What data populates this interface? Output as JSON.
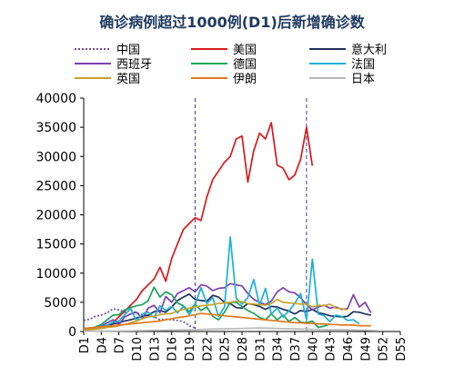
{
  "chart_data": {
    "type": "line",
    "title": "确诊病例超过1000例(D1)后新增确诊数",
    "xlabel": "",
    "ylabel": "",
    "ylim": [
      0,
      40000
    ],
    "yticks": [
      0,
      5000,
      10000,
      15000,
      20000,
      25000,
      30000,
      35000,
      40000
    ],
    "xlim": [
      1,
      55
    ],
    "xticks": [
      "D1",
      "D4",
      "D7",
      "D10",
      "D13",
      "D16",
      "D19",
      "D22",
      "D25",
      "D28",
      "D31",
      "D34",
      "D37",
      "D40",
      "D43",
      "D46",
      "D49",
      "D52",
      "D55"
    ],
    "grid": false,
    "legend_position": "top",
    "vlines": [
      20,
      39
    ],
    "series": [
      {
        "name": "中国",
        "color": "#6b4f8f",
        "dashed": true,
        "x": [
          1,
          2,
          3,
          4,
          5,
          6,
          7,
          8,
          9,
          10,
          11,
          12,
          13,
          14,
          15,
          16,
          17,
          18,
          19,
          20
        ],
        "y": [
          1900,
          2100,
          2600,
          2800,
          3200,
          3900,
          3700,
          3300,
          3700,
          3200,
          2900,
          2700,
          2500,
          2000,
          2100,
          2000,
          1900,
          1700,
          1000,
          600
        ]
      },
      {
        "name": "美国",
        "color": "#d7191c",
        "dashed": false,
        "x": [
          1,
          2,
          3,
          4,
          5,
          6,
          7,
          8,
          9,
          10,
          11,
          12,
          13,
          14,
          15,
          16,
          17,
          18,
          19,
          20,
          21,
          22,
          23,
          24,
          25,
          26,
          27,
          28,
          29,
          30,
          31,
          32,
          33,
          34,
          35,
          36,
          37,
          38,
          39,
          40
        ],
        "y": [
          400,
          500,
          600,
          800,
          1000,
          1500,
          2500,
          3500,
          4500,
          5500,
          7000,
          8000,
          9000,
          11000,
          8600,
          12500,
          15000,
          17500,
          18500,
          19500,
          19000,
          23000,
          26000,
          27500,
          29000,
          30000,
          33000,
          33500,
          25600,
          31000,
          34000,
          33000,
          35800,
          28500,
          28000,
          26000,
          26800,
          29500,
          35000,
          28400
        ]
      },
      {
        "name": "意大利",
        "color": "#1f2f5c",
        "dashed": false,
        "x": [
          1,
          2,
          3,
          4,
          5,
          6,
          7,
          8,
          9,
          10,
          11,
          12,
          13,
          14,
          15,
          16,
          17,
          18,
          19,
          20,
          21,
          22,
          23,
          24,
          25,
          26,
          27,
          28,
          29,
          30,
          31,
          32,
          33,
          34,
          35,
          36,
          37,
          38,
          39,
          40,
          41,
          42,
          43,
          44,
          45,
          46,
          47,
          48,
          49,
          50
        ],
        "y": [
          500,
          600,
          700,
          800,
          1000,
          1300,
          1500,
          1800,
          2000,
          2300,
          2600,
          2800,
          3400,
          3600,
          3300,
          4200,
          5300,
          5900,
          6400,
          5500,
          5300,
          5200,
          6200,
          5900,
          5000,
          4800,
          4100,
          4000,
          4800,
          4600,
          4300,
          3800,
          4300,
          4200,
          3800,
          3500,
          3000,
          3600,
          3400,
          3800,
          3200,
          3000,
          2700,
          2600,
          2500,
          2600,
          3400,
          3300,
          3000,
          2800
        ]
      },
      {
        "name": "西班牙",
        "color": "#7a3fb0",
        "dashed": false,
        "x": [
          1,
          2,
          3,
          4,
          5,
          6,
          7,
          8,
          9,
          10,
          11,
          12,
          13,
          14,
          15,
          16,
          17,
          18,
          19,
          20,
          21,
          22,
          23,
          24,
          25,
          26,
          27,
          28,
          29,
          30,
          31,
          32,
          33,
          34,
          35,
          36,
          37,
          38,
          39,
          40,
          41,
          42,
          43,
          44,
          45,
          46,
          47,
          48,
          49,
          50
        ],
        "y": [
          300,
          500,
          700,
          900,
          1500,
          2000,
          1200,
          2500,
          3000,
          3300,
          2200,
          4000,
          4500,
          3200,
          6000,
          5000,
          6500,
          7000,
          7500,
          6800,
          8000,
          7800,
          7000,
          7400,
          7500,
          8200,
          8000,
          7800,
          6500,
          5500,
          5000,
          4600,
          5200,
          6800,
          7500,
          6800,
          6600,
          5800,
          4600,
          3700,
          4200,
          4500,
          4000,
          4200,
          3800,
          3900,
          6300,
          4200,
          5000,
          3200
        ]
      },
      {
        "name": "德国",
        "color": "#1aa35a",
        "dashed": false,
        "x": [
          1,
          2,
          3,
          4,
          5,
          6,
          7,
          8,
          9,
          10,
          11,
          12,
          13,
          14,
          15,
          16,
          17,
          18,
          19,
          20,
          21,
          22,
          23,
          24,
          25,
          26,
          27,
          28,
          29,
          30,
          31,
          32,
          33,
          34,
          35,
          36,
          37,
          38,
          39,
          40,
          41,
          42,
          43
        ],
        "y": [
          100,
          300,
          800,
          1200,
          2000,
          2800,
          2900,
          3700,
          4100,
          4400,
          4600,
          5300,
          7600,
          5900,
          6800,
          6300,
          4900,
          4400,
          3400,
          4700,
          3600,
          4200,
          2600,
          2000,
          3300,
          5000,
          5000,
          4300,
          3600,
          3100,
          2400,
          2000,
          3000,
          2000,
          2800,
          1700,
          2400,
          1600,
          1500,
          1800,
          700,
          900,
          1300
        ]
      },
      {
        "name": "法国",
        "color": "#1ab0d8",
        "dashed": false,
        "x": [
          1,
          2,
          3,
          4,
          5,
          6,
          7,
          8,
          9,
          10,
          11,
          12,
          13,
          14,
          15,
          16,
          17,
          18,
          19,
          20,
          21,
          22,
          23,
          24,
          25,
          26,
          27,
          28,
          29,
          30,
          31,
          32,
          33,
          34,
          35,
          36,
          37,
          38,
          39,
          40,
          41,
          42,
          43,
          44,
          45,
          46,
          47,
          48
        ],
        "y": [
          200,
          300,
          500,
          800,
          1100,
          1600,
          1800,
          2900,
          3900,
          1800,
          3000,
          3300,
          2400,
          4400,
          3600,
          4300,
          3200,
          4300,
          2900,
          4600,
          7500,
          4800,
          5800,
          2600,
          4200,
          16200,
          5700,
          4700,
          5800,
          8900,
          4500,
          7400,
          3000,
          4000,
          2500,
          3500,
          4800,
          6500,
          2000,
          12400,
          3000,
          2700,
          1700,
          2800,
          2600,
          1900,
          2000,
          1300
        ]
      },
      {
        "name": "英国",
        "color": "#c9a227",
        "dashed": false,
        "x": [
          1,
          2,
          3,
          4,
          5,
          6,
          7,
          8,
          9,
          10,
          11,
          12,
          13,
          14,
          15,
          16,
          17,
          18,
          19,
          20,
          21,
          22,
          23,
          24,
          25,
          26,
          27,
          28,
          29,
          30,
          31,
          32,
          33,
          34,
          35,
          36,
          37,
          38,
          39,
          40,
          41,
          42,
          43,
          44,
          45,
          46
        ],
        "y": [
          200,
          300,
          400,
          500,
          700,
          800,
          1000,
          1200,
          1500,
          1800,
          2200,
          2500,
          2600,
          2900,
          3000,
          3100,
          3500,
          3800,
          4000,
          4200,
          4400,
          4500,
          4600,
          4800,
          4900,
          5000,
          5200,
          5100,
          4800,
          4700,
          4600,
          4500,
          4800,
          5500,
          5000,
          4900,
          4800,
          4700,
          4700,
          4200,
          4500,
          4400,
          4700,
          4000,
          3900,
          3700
        ]
      },
      {
        "name": "伊朗",
        "color": "#e07a1f",
        "dashed": false,
        "x": [
          1,
          2,
          3,
          4,
          5,
          6,
          7,
          8,
          9,
          10,
          11,
          12,
          13,
          14,
          15,
          16,
          17,
          18,
          19,
          20,
          21,
          22,
          23,
          24,
          25,
          26,
          27,
          28,
          29,
          30,
          31,
          32,
          33,
          34,
          35,
          36,
          37,
          38,
          39,
          40,
          41,
          42,
          43,
          44,
          45,
          46,
          47,
          48,
          49,
          50
        ],
        "y": [
          500,
          600,
          700,
          800,
          900,
          1000,
          1100,
          1200,
          1300,
          1400,
          1500,
          1600,
          1700,
          1800,
          2000,
          2200,
          2400,
          2500,
          2700,
          2900,
          3100,
          3000,
          2900,
          2800,
          2700,
          2600,
          2500,
          2400,
          2300,
          2200,
          2100,
          2000,
          1900,
          1800,
          1700,
          1600,
          1500,
          1500,
          1400,
          1400,
          1300,
          1300,
          1200,
          1200,
          1100,
          1100,
          1100,
          1000,
          1000,
          1000
        ]
      },
      {
        "name": "日本",
        "color": "#b9b9b9",
        "dashed": false,
        "x": [
          1,
          3,
          5,
          7,
          9,
          11,
          13,
          15,
          17,
          19,
          21,
          23,
          25,
          27,
          29,
          31,
          33,
          35,
          37,
          39,
          41,
          43,
          45,
          47,
          49,
          51
        ],
        "y": [
          50,
          60,
          80,
          100,
          120,
          150,
          180,
          200,
          250,
          300,
          350,
          400,
          450,
          500,
          550,
          600,
          550,
          500,
          450,
          400,
          350,
          300,
          300,
          250,
          200,
          150
        ]
      }
    ]
  }
}
